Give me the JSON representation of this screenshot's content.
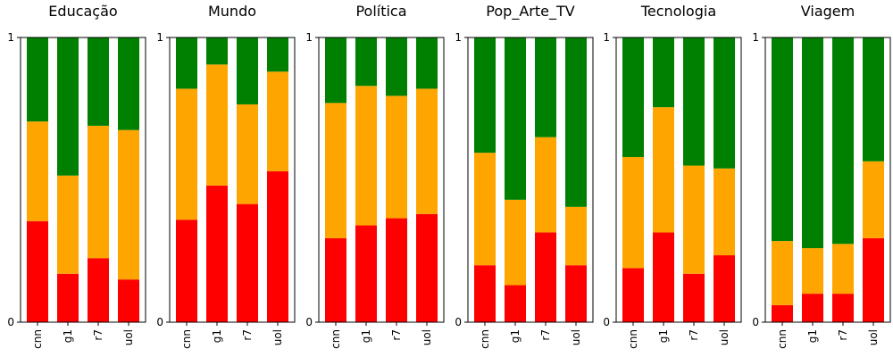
{
  "chart_data": [
    {
      "type": "bar",
      "stacked": true,
      "normalized": true,
      "title": "Educação",
      "categories": [
        "cnn",
        "g1",
        "r7",
        "uol"
      ],
      "series": [
        {
          "color": "#ff0000",
          "values": [
            0.355,
            0.17,
            0.225,
            0.15
          ]
        },
        {
          "color": "#ffa500",
          "values": [
            0.35,
            0.345,
            0.465,
            0.525
          ]
        },
        {
          "color": "#008000",
          "values": [
            0.295,
            0.485,
            0.31,
            0.325
          ]
        }
      ],
      "ylim": [
        0,
        1
      ],
      "yticks": [
        "0",
        "1"
      ],
      "grid": false
    },
    {
      "type": "bar",
      "stacked": true,
      "normalized": true,
      "title": "Mundo",
      "categories": [
        "cnn",
        "g1",
        "r7",
        "uol"
      ],
      "series": [
        {
          "color": "#ff0000",
          "values": [
            0.36,
            0.48,
            0.415,
            0.53
          ]
        },
        {
          "color": "#ffa500",
          "values": [
            0.46,
            0.425,
            0.35,
            0.35
          ]
        },
        {
          "color": "#008000",
          "values": [
            0.18,
            0.095,
            0.235,
            0.12
          ]
        }
      ],
      "ylim": [
        0,
        1
      ],
      "yticks": [
        "0",
        "1"
      ],
      "grid": false
    },
    {
      "type": "bar",
      "stacked": true,
      "normalized": true,
      "title": "Política",
      "categories": [
        "cnn",
        "g1",
        "r7",
        "uol"
      ],
      "series": [
        {
          "color": "#ff0000",
          "values": [
            0.295,
            0.34,
            0.365,
            0.38
          ]
        },
        {
          "color": "#ffa500",
          "values": [
            0.475,
            0.49,
            0.43,
            0.44
          ]
        },
        {
          "color": "#008000",
          "values": [
            0.23,
            0.17,
            0.205,
            0.18
          ]
        }
      ],
      "ylim": [
        0,
        1
      ],
      "yticks": [
        "0",
        "1"
      ],
      "grid": false
    },
    {
      "type": "bar",
      "stacked": true,
      "normalized": true,
      "title": "Pop_Arte_TV",
      "categories": [
        "cnn",
        "g1",
        "r7",
        "uol"
      ],
      "series": [
        {
          "color": "#ff0000",
          "values": [
            0.2,
            0.13,
            0.315,
            0.2
          ]
        },
        {
          "color": "#ffa500",
          "values": [
            0.395,
            0.3,
            0.335,
            0.205
          ]
        },
        {
          "color": "#008000",
          "values": [
            0.405,
            0.57,
            0.35,
            0.595
          ]
        }
      ],
      "ylim": [
        0,
        1
      ],
      "yticks": [
        "0",
        "1"
      ],
      "grid": false
    },
    {
      "type": "bar",
      "stacked": true,
      "normalized": true,
      "title": "Tecnologia",
      "categories": [
        "cnn",
        "g1",
        "r7",
        "uol"
      ],
      "series": [
        {
          "color": "#ff0000",
          "values": [
            0.19,
            0.315,
            0.17,
            0.235
          ]
        },
        {
          "color": "#ffa500",
          "values": [
            0.39,
            0.44,
            0.38,
            0.305
          ]
        },
        {
          "color": "#008000",
          "values": [
            0.42,
            0.245,
            0.45,
            0.46
          ]
        }
      ],
      "ylim": [
        0,
        1
      ],
      "yticks": [
        "0",
        "1"
      ],
      "grid": false
    },
    {
      "type": "bar",
      "stacked": true,
      "normalized": true,
      "title": "Viagem",
      "categories": [
        "cnn",
        "g1",
        "r7",
        "uol"
      ],
      "series": [
        {
          "color": "#ff0000",
          "values": [
            0.06,
            0.1,
            0.1,
            0.295
          ]
        },
        {
          "color": "#ffa500",
          "values": [
            0.225,
            0.16,
            0.175,
            0.27
          ]
        },
        {
          "color": "#008000",
          "values": [
            0.715,
            0.74,
            0.725,
            0.435
          ]
        }
      ],
      "ylim": [
        0,
        1
      ],
      "yticks": [
        "0",
        "1"
      ],
      "grid": false
    }
  ]
}
